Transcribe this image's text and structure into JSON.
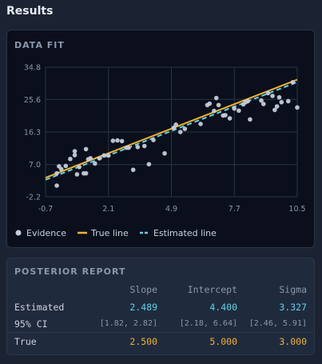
{
  "page": {
    "title": "Results"
  },
  "chart_data": {
    "type": "scatter",
    "title": "DATA FIT",
    "xlabel": "",
    "ylabel": "",
    "xlim": [
      -0.7,
      10.5
    ],
    "ylim": [
      -2.2,
      34.8
    ],
    "x_ticks": [
      "-0.7",
      "2.1",
      "4.9",
      "7.7",
      "10.5"
    ],
    "y_ticks": [
      "34.8",
      "25.6",
      "16.3",
      "7.0",
      "-2.2"
    ],
    "grid": true,
    "legend_position": "bottom-left",
    "series": [
      {
        "name": "Evidence",
        "kind": "points",
        "color": "#c5ccd8",
        "points": [
          [
            -0.2,
            1.0
          ],
          [
            -0.2,
            4.5
          ],
          [
            -0.1,
            6.5
          ],
          [
            0.0,
            5.7
          ],
          [
            0.2,
            6.6
          ],
          [
            0.4,
            8.6
          ],
          [
            0.6,
            9.7
          ],
          [
            0.6,
            10.8
          ],
          [
            0.7,
            4.2
          ],
          [
            0.8,
            6.3
          ],
          [
            1.0,
            4.5
          ],
          [
            1.1,
            11.4
          ],
          [
            1.1,
            4.5
          ],
          [
            1.2,
            8.5
          ],
          [
            1.3,
            8.8
          ],
          [
            1.5,
            7.3
          ],
          [
            1.7,
            8.8
          ],
          [
            1.9,
            9.6
          ],
          [
            2.1,
            9.6
          ],
          [
            2.3,
            13.8
          ],
          [
            2.5,
            13.9
          ],
          [
            2.7,
            13.7
          ],
          [
            2.9,
            11.8
          ],
          [
            3.0,
            11.8
          ],
          [
            3.2,
            5.5
          ],
          [
            3.4,
            12.0
          ],
          [
            3.7,
            12.3
          ],
          [
            3.9,
            7.1
          ],
          [
            4.1,
            14.0
          ],
          [
            4.6,
            10.2
          ],
          [
            5.0,
            17.5
          ],
          [
            5.1,
            18.4
          ],
          [
            5.3,
            16.3
          ],
          [
            5.5,
            17.2
          ],
          [
            6.2,
            18.6
          ],
          [
            6.5,
            24.0
          ],
          [
            6.6,
            24.4
          ],
          [
            6.8,
            22.3
          ],
          [
            6.9,
            26.0
          ],
          [
            7.0,
            24.0
          ],
          [
            7.2,
            21.0
          ],
          [
            7.3,
            21.1
          ],
          [
            7.5,
            20.2
          ],
          [
            7.7,
            23.0
          ],
          [
            7.9,
            22.4
          ],
          [
            8.1,
            24.2
          ],
          [
            8.2,
            24.8
          ],
          [
            8.3,
            25.1
          ],
          [
            8.4,
            19.9
          ],
          [
            8.9,
            25.3
          ],
          [
            9.0,
            24.3
          ],
          [
            9.2,
            27.4
          ],
          [
            9.4,
            26.6
          ],
          [
            9.5,
            22.6
          ],
          [
            9.6,
            23.6
          ],
          [
            9.7,
            26.2
          ],
          [
            9.8,
            24.8
          ],
          [
            10.1,
            25.1
          ],
          [
            10.3,
            30.5
          ],
          [
            10.5,
            23.3
          ]
        ]
      },
      {
        "name": "True line",
        "kind": "line",
        "color": "#f2b233",
        "slope": 2.5,
        "intercept": 5.0
      },
      {
        "name": "Estimated line",
        "kind": "line",
        "style": "dashed",
        "color": "#5fd3e6",
        "slope": 2.489,
        "intercept": 4.4
      }
    ]
  },
  "report": {
    "title": "POSTERIOR REPORT",
    "columns": [
      "Slope",
      "Intercept",
      "Sigma"
    ],
    "rows": [
      {
        "label": "Estimated",
        "values": [
          "2.489",
          "4.400",
          "3.327"
        ]
      },
      {
        "label": "95% CI",
        "values": [
          "[1.82, 2.82]",
          "[2.18, 6.64]",
          "[2.46, 5.91]"
        ]
      },
      {
        "label": "True",
        "values": [
          "2.500",
          "5.000",
          "3.000"
        ]
      }
    ]
  }
}
